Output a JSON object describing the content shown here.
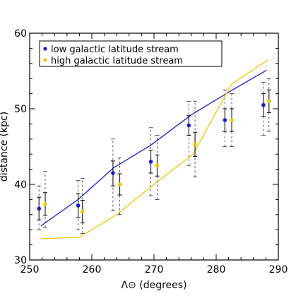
{
  "chart_data": {
    "type": "scatter",
    "xlabel": "Λ⊙ (degrees)",
    "ylabel": "distance (kpc)",
    "xlim": [
      250,
      290
    ],
    "ylim": [
      30,
      60
    ],
    "x_ticks": [
      250,
      260,
      270,
      280,
      290
    ],
    "y_ticks": [
      30,
      40,
      50,
      60
    ],
    "grid": false,
    "legend_position": "top-left",
    "series": [
      {
        "name": "low galactic latitude stream",
        "color": "#1a1acc",
        "points": [
          {
            "x": 251.5,
            "y": 36.8,
            "y_err": [
              35.3,
              38.3
            ],
            "y_wide": [
              34.0,
              39.8
            ]
          },
          {
            "x": 257.8,
            "y": 37.2,
            "y_err": [
              35.6,
              38.8
            ],
            "y_wide": [
              34.0,
              40.5
            ]
          },
          {
            "x": 263.4,
            "y": 41.5,
            "y_err": [
              39.8,
              43.1
            ],
            "y_wide": [
              36.5,
              46.0
            ]
          },
          {
            "x": 269.5,
            "y": 43.0,
            "y_err": [
              41.5,
              44.5
            ],
            "y_wide": [
              38.5,
              47.5
            ]
          },
          {
            "x": 275.6,
            "y": 47.8,
            "y_err": [
              46.5,
              49.1
            ],
            "y_wide": [
              42.5,
              51.0
            ]
          },
          {
            "x": 281.4,
            "y": 48.5,
            "y_err": [
              47.0,
              50.0
            ],
            "y_wide": [
              45.0,
              52.5
            ]
          },
          {
            "x": 287.6,
            "y": 50.5,
            "y_err": [
              49.0,
              52.0
            ],
            "y_wide": [
              46.5,
              53.5
            ]
          }
        ],
        "line": {
          "x": [
            251.8,
            257.8,
            263.5,
            269.5,
            276.0,
            282.0,
            288.1
          ],
          "y": [
            34.5,
            38.0,
            42.2,
            45.2,
            49.2,
            52.2,
            55.1
          ]
        }
      },
      {
        "name": "high galactic latitude stream",
        "color": "#f5c400",
        "points": [
          {
            "x": 252.5,
            "y": 37.4,
            "y_err": [
              35.9,
              38.9
            ],
            "y_wide": [
              34.3,
              41.7
            ]
          },
          {
            "x": 258.5,
            "y": 36.4,
            "y_err": [
              34.9,
              37.9
            ],
            "y_wide": [
              33.5,
              40.8
            ]
          },
          {
            "x": 264.5,
            "y": 40.0,
            "y_err": [
              38.6,
              41.4
            ],
            "y_wide": [
              36.0,
              43.5
            ]
          },
          {
            "x": 270.5,
            "y": 42.5,
            "y_err": [
              41.1,
              43.9
            ],
            "y_wide": [
              38.0,
              46.5
            ]
          },
          {
            "x": 276.6,
            "y": 45.3,
            "y_err": [
              43.7,
              46.9
            ],
            "y_wide": [
              41.0,
              51.0
            ]
          },
          {
            "x": 282.5,
            "y": 48.5,
            "y_err": [
              47.0,
              50.0
            ],
            "y_wide": [
              45.0,
              52.0
            ]
          },
          {
            "x": 288.5,
            "y": 51.0,
            "y_err": [
              49.5,
              52.5
            ],
            "y_wide": [
              47.0,
              54.0
            ]
          }
        ],
        "line": {
          "x": [
            251.8,
            258.0,
            264.0,
            270.0,
            276.3,
            282.5,
            288.4
          ],
          "y": [
            32.8,
            33.0,
            36.0,
            40.0,
            44.0,
            53.3,
            56.5
          ]
        }
      }
    ]
  }
}
